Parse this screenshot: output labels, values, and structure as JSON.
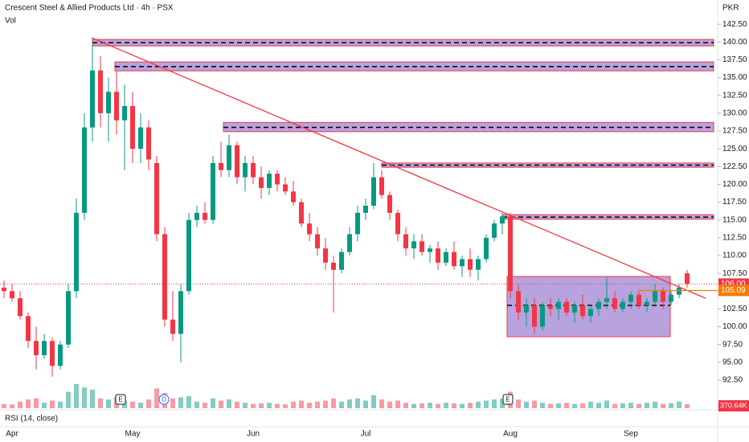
{
  "chart_data": {
    "type": "candlestick",
    "title": "Crescent Steel & Allied Products Ltd · 4h · PSX",
    "currency": "PKR",
    "indicator_label": "RSI (14, close)",
    "up_color": "#089981",
    "down_color": "#f23645",
    "categories": [
      null,
      "Apr",
      null,
      null,
      null,
      null,
      null,
      null,
      null,
      null,
      null,
      null,
      null,
      null,
      null,
      null,
      "May",
      null,
      null,
      null,
      null,
      null,
      null,
      null,
      null,
      null,
      null,
      null,
      null,
      null,
      null,
      "Jun",
      null,
      null,
      null,
      null,
      null,
      null,
      null,
      null,
      null,
      null,
      null,
      null,
      null,
      "Jul",
      null,
      null,
      null,
      null,
      null,
      null,
      null,
      null,
      null,
      null,
      null,
      null,
      null,
      null,
      null,
      null,
      null,
      "Aug",
      null,
      null,
      null,
      null,
      null,
      null,
      null,
      null,
      null,
      null,
      null,
      null,
      null,
      null,
      "Sep",
      null,
      null,
      null,
      null,
      null,
      null,
      null
    ],
    "open": [
      105.5,
      105,
      104,
      101.5,
      98,
      96,
      98,
      94.5,
      97.5,
      105,
      116,
      128,
      136,
      130,
      133,
      129,
      131,
      125,
      128,
      123,
      113,
      101,
      99,
      105,
      115,
      116,
      115,
      123,
      122,
      125.5,
      121,
      123,
      121,
      119.5,
      121.5,
      120,
      119,
      117.5,
      114.5,
      113,
      111,
      109,
      108,
      110.5,
      113,
      116,
      117,
      121,
      118.5,
      116,
      113,
      111,
      112,
      110.5,
      111,
      109,
      110.5,
      108.5,
      109.5,
      108,
      109.5,
      112.5,
      114.5,
      115.5,
      105,
      102,
      103,
      100,
      103,
      102.5,
      103.5,
      102,
      103,
      101.5,
      102.5,
      103.5,
      104,
      102.5,
      103.5,
      104.5,
      103,
      103.5,
      105,
      103.5,
      104.5,
      107.5
    ],
    "high": [
      106.5,
      106,
      105,
      102,
      100,
      99,
      98.5,
      98,
      106,
      118,
      130,
      140,
      138,
      135,
      136,
      134,
      133,
      130,
      129,
      124,
      114,
      105,
      106,
      116,
      117,
      117.5,
      124,
      126,
      127,
      126,
      124,
      124,
      122.5,
      122,
      122,
      121,
      120.5,
      118,
      116,
      114,
      112.5,
      110,
      111,
      114,
      117,
      118,
      123,
      122,
      119,
      116.5,
      114,
      113,
      113,
      111.5,
      112,
      111,
      112,
      110,
      111,
      110,
      113,
      115,
      116,
      116,
      106,
      104,
      104,
      103.5,
      104,
      104,
      104,
      103.5,
      104.5,
      103,
      104,
      107,
      105,
      104,
      105,
      105,
      104,
      106,
      105.5,
      105,
      106,
      108
    ],
    "low": [
      104,
      103.5,
      101,
      97,
      94,
      95.5,
      93,
      94,
      97,
      104,
      115,
      126,
      128,
      126,
      127,
      122,
      123,
      123,
      122,
      112,
      100,
      98,
      95,
      104.5,
      114,
      114.5,
      114.5,
      121,
      121,
      120,
      119,
      120,
      118,
      118.5,
      119,
      118.5,
      117,
      114,
      112,
      110,
      108,
      102,
      107.5,
      110,
      112,
      115,
      116.5,
      118,
      115,
      112,
      110,
      109.5,
      110,
      109,
      108,
      108.5,
      108,
      107,
      107,
      106.5,
      109,
      112,
      113,
      104,
      101,
      100,
      99,
      99.5,
      101.5,
      101,
      101.5,
      100.5,
      101,
      100.5,
      101.5,
      102.5,
      102,
      102,
      102.5,
      102.5,
      102,
      103,
      102.5,
      103,
      104,
      105.5
    ],
    "close": [
      105,
      104,
      101.5,
      98,
      96,
      98,
      94.5,
      97.5,
      105,
      116,
      128,
      136,
      130,
      133,
      129,
      131,
      125,
      128,
      123.5,
      113,
      101,
      99,
      105,
      115,
      116,
      115,
      123,
      122,
      125.5,
      121,
      123,
      121,
      119.5,
      121.5,
      120,
      119,
      117.5,
      114.5,
      113,
      111,
      109,
      108,
      110.5,
      113,
      116,
      117,
      121,
      118.5,
      116,
      113,
      111,
      112,
      110.5,
      111,
      109,
      110.5,
      108.5,
      109.5,
      108,
      109.5,
      112.5,
      114.5,
      115.5,
      105,
      102,
      103,
      100,
      103,
      102.5,
      103.5,
      102,
      103,
      101.5,
      102.5,
      103.5,
      104,
      102.5,
      103.5,
      104.5,
      103,
      103.5,
      105,
      103.5,
      104.5,
      105.5,
      106
    ],
    "volume": {
      "name": "Vol",
      "values": [
        400,
        350,
        600,
        800,
        900,
        500,
        700,
        600,
        1500,
        2200,
        1900,
        1700,
        900,
        800,
        1000,
        700,
        600,
        500,
        800,
        1800,
        1400,
        900,
        1000,
        1100,
        600,
        500,
        900,
        700,
        800,
        600,
        500,
        400,
        450,
        500,
        400,
        350,
        600,
        700,
        500,
        600,
        700,
        900,
        600,
        800,
        900,
        700,
        1200,
        800,
        600,
        700,
        500,
        400,
        450,
        500,
        400,
        500,
        450,
        400,
        500,
        600,
        700,
        800,
        900,
        1500,
        800,
        600,
        700,
        500,
        400,
        450,
        500,
        400,
        450,
        600,
        500,
        700,
        400,
        450,
        500,
        400,
        500,
        600,
        400,
        450,
        600,
        370.64
      ],
      "last_value_label": "370.64K"
    },
    "ylim": [
      88.55,
      145.9
    ],
    "yticks": [
      {
        "value": 142.5,
        "label": "142.50"
      },
      {
        "value": 140,
        "label": "140.00"
      },
      {
        "value": 137.5,
        "label": "137.50"
      },
      {
        "value": 135,
        "label": "135.00"
      },
      {
        "value": 132.5,
        "label": "132.50"
      },
      {
        "value": 130,
        "label": "130.00"
      },
      {
        "value": 127.5,
        "label": "127.50"
      },
      {
        "value": 125,
        "label": "125.00"
      },
      {
        "value": 122.5,
        "label": "122.50"
      },
      {
        "value": 120,
        "label": "120.00"
      },
      {
        "value": 117.5,
        "label": "117.50"
      },
      {
        "value": 115,
        "label": "115.00"
      },
      {
        "value": 112.5,
        "label": "112.50"
      },
      {
        "value": 110,
        "label": "110.00"
      },
      {
        "value": 107.5,
        "label": "107.50"
      },
      {
        "value": 105,
        "label": "105.00"
      },
      {
        "value": 102.5,
        "label": "102.50"
      },
      {
        "value": 100,
        "label": "100.00"
      },
      {
        "value": 97.5,
        "label": "97.50"
      },
      {
        "value": 95,
        "label": "95.00"
      },
      {
        "value": 92.5,
        "label": "92.50"
      }
    ],
    "last_price": {
      "value": 106,
      "label": "106.00"
    },
    "level": {
      "value": 105.09,
      "label": "105.09",
      "start": 79,
      "color": "#f57c00"
    },
    "zones": [
      {
        "start": 11,
        "low": 139.45,
        "high": 140.36,
        "mid": 139.9
      },
      {
        "start": 13.8,
        "low": 135.95,
        "high": 137.2,
        "mid": 136.55
      },
      {
        "start": 27.3,
        "low": 127.4,
        "high": 128.7,
        "mid": 128.0
      },
      {
        "start": 47,
        "low": 122.4,
        "high": 123.0,
        "mid": 122.7
      },
      {
        "start": 62,
        "low": 115.1,
        "high": 115.75,
        "mid": 115.4
      }
    ],
    "range_box": {
      "start": 62.6,
      "end": 82.9,
      "low": 98.6,
      "high": 107.06,
      "mid": 103.0
    },
    "trendline": {
      "from": [
        10.9,
        140.6
      ],
      "to": [
        87.3,
        104.0
      ],
      "color": "#f23645"
    },
    "events": [
      {
        "label": "E",
        "index": 14.5
      },
      {
        "label": "D",
        "index": 19.9
      },
      {
        "label": "E",
        "index": 62.7
      }
    ]
  }
}
